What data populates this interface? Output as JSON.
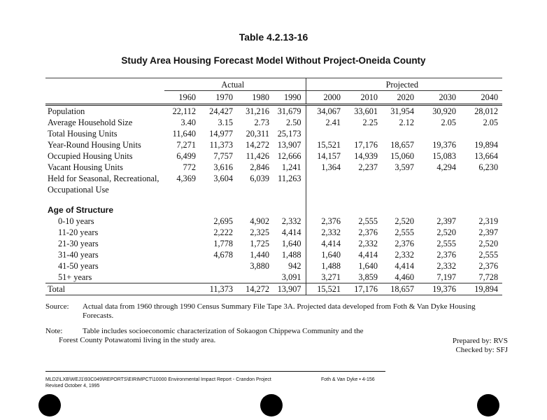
{
  "table_number": "Table 4.2.13-16",
  "title": "Study Area Housing Forecast Model Without Project-Oneida County",
  "groups": {
    "actual": "Actual",
    "projected": "Projected"
  },
  "years": [
    "1960",
    "1970",
    "1980",
    "1990",
    "2000",
    "2010",
    "2020",
    "2030",
    "2040"
  ],
  "rows": [
    {
      "label": "Population",
      "values": [
        "22,112",
        "24,427",
        "31,216",
        "31,679",
        "34,067",
        "33,601",
        "31,954",
        "30,920",
        "28,012"
      ]
    },
    {
      "label": "Average Household Size",
      "values": [
        "3.40",
        "3.15",
        "2.73",
        "2.50",
        "2.41",
        "2.25",
        "2.12",
        "2.05",
        "2.05"
      ]
    },
    {
      "label": "Total Housing Units",
      "values": [
        "11,640",
        "14,977",
        "20,311",
        "25,173",
        "",
        "",
        "",
        "",
        ""
      ]
    },
    {
      "label": "Year-Round Housing Units",
      "values": [
        "7,271",
        "11,373",
        "14,272",
        "13,907",
        "15,521",
        "17,176",
        "18,657",
        "19,376",
        "19,894"
      ]
    },
    {
      "label": "Occupied Housing Units",
      "values": [
        "6,499",
        "7,757",
        "11,426",
        "12,666",
        "14,157",
        "14,939",
        "15,060",
        "15,083",
        "13,664"
      ]
    },
    {
      "label": "Vacant Housing Units",
      "values": [
        "772",
        "3,616",
        "2,846",
        "1,241",
        "1,364",
        "2,237",
        "3,597",
        "4,294",
        "6,230"
      ]
    },
    {
      "label": "Held for Seasonal, Recreational,",
      "values": [
        "4,369",
        "3,604",
        "6,039",
        "11,263",
        "",
        "",
        "",
        "",
        ""
      ]
    },
    {
      "label": "Occupational Use",
      "values": [
        "",
        "",
        "",
        "",
        "",
        "",
        "",
        "",
        ""
      ]
    }
  ],
  "age_heading": "Age of Structure",
  "age_rows": [
    {
      "label": "0-10 years",
      "values": [
        "",
        "2,695",
        "4,902",
        "2,332",
        "2,376",
        "2,555",
        "2,520",
        "2,397",
        "2,319"
      ]
    },
    {
      "label": "11-20 years",
      "values": [
        "",
        "2,222",
        "2,325",
        "4,414",
        "2,332",
        "2,376",
        "2,555",
        "2,520",
        "2,397"
      ]
    },
    {
      "label": "21-30 years",
      "values": [
        "",
        "1,778",
        "1,725",
        "1,640",
        "4,414",
        "2,332",
        "2,376",
        "2,555",
        "2,520"
      ]
    },
    {
      "label": "31-40 years",
      "values": [
        "",
        "4,678",
        "1,440",
        "1,488",
        "1,640",
        "4,414",
        "2,332",
        "2,376",
        "2,555"
      ]
    },
    {
      "label": "41-50 years",
      "values": [
        "",
        "",
        "3,880",
        "942",
        "1,488",
        "1,640",
        "4,414",
        "2,332",
        "2,376"
      ]
    },
    {
      "label": "51+ years",
      "values": [
        "",
        "",
        "",
        "3,091",
        "3,271",
        "3,859",
        "4,460",
        "7,197",
        "7,728"
      ]
    }
  ],
  "total": {
    "label": "Total",
    "values": [
      "",
      "11,373",
      "14,272",
      "13,907",
      "15,521",
      "17,176",
      "18,657",
      "19,376",
      "19,894"
    ]
  },
  "source": {
    "label": "Source:",
    "text1": "Actual data from 1960 through 1990 Census Summary File Tape 3A.  Projected data developed from Foth & Van Dyke Housing",
    "text2": "Forecasts."
  },
  "note": {
    "label": "Note:",
    "text1": "Table includes socioeconomic characterization of Sokaogon Chippewa Community and the",
    "text2": "Forest County Potawatomi living in the study area."
  },
  "prepared_by": "Prepared by:  RVS",
  "checked_by": "Checked by:  SFJ",
  "footer": {
    "path": "MLD2\\LXB\\WEJ1\\93C049\\REPORTS\\EIRIMPCT\\10000  Environmental Impact Report - Crandon Project",
    "revised": "Revised October 4, 1995",
    "page": "Foth & Van Dyke • 4-156"
  }
}
